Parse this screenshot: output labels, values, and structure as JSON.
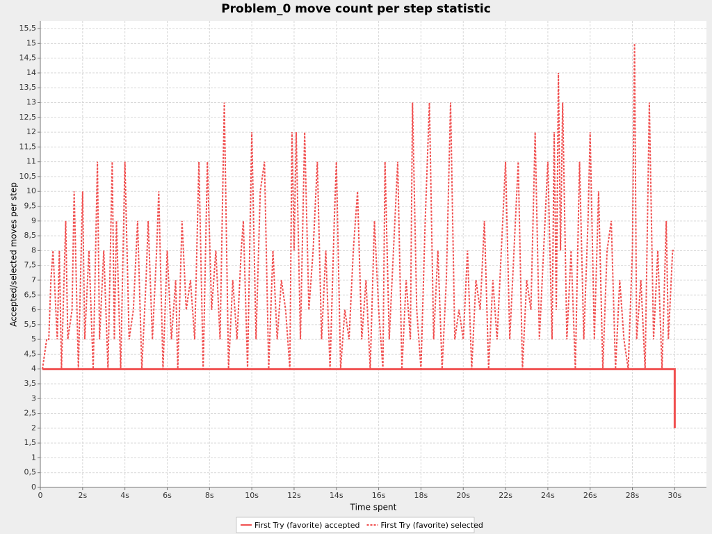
{
  "chart_data": {
    "type": "line",
    "title": "Problem_0 move count per step statistic",
    "x_label": "Time spent",
    "y_label": "Accepted/selected moves per step",
    "xlim": [
      0,
      31.5
    ],
    "ylim": [
      0,
      15.76
    ],
    "grid": true,
    "legend": "bottom",
    "xticks": [
      0,
      {
        "value": 2,
        "label": "2s"
      },
      {
        "value": 4,
        "label": "4s"
      },
      {
        "value": 6,
        "label": "6s"
      },
      {
        "value": 8,
        "label": "8s"
      },
      {
        "value": 10,
        "label": "10s"
      },
      {
        "value": 12,
        "label": "12s"
      },
      {
        "value": 14,
        "label": "14s"
      },
      {
        "value": 16,
        "label": "16s"
      },
      {
        "value": 18,
        "label": "18s"
      },
      {
        "value": 20,
        "label": "20s"
      },
      {
        "value": 22,
        "label": "22s"
      },
      {
        "value": 24,
        "label": "24s"
      },
      {
        "value": 26,
        "label": "26s"
      },
      {
        "value": 28,
        "label": "28s"
      },
      {
        "value": 30,
        "label": "30s"
      }
    ],
    "yticks": [
      0,
      {
        "value": 0.5,
        "label": "0,5"
      },
      1,
      {
        "value": 1.5,
        "label": "1,5"
      },
      2,
      {
        "value": 2.5,
        "label": "2,5"
      },
      3,
      {
        "value": 3.5,
        "label": "3,5"
      },
      4,
      {
        "value": 4.5,
        "label": "4,5"
      },
      5,
      {
        "value": 5.5,
        "label": "5,5"
      },
      6,
      {
        "value": 6.5,
        "label": "6,5"
      },
      7,
      {
        "value": 7.5,
        "label": "7,5"
      },
      8,
      {
        "value": 8.5,
        "label": "8,5"
      },
      9,
      {
        "value": 9.5,
        "label": "9,5"
      },
      10,
      {
        "value": 10.5,
        "label": "10,5"
      },
      11,
      {
        "value": 11.5,
        "label": "11,5"
      },
      12,
      {
        "value": 12.5,
        "label": "12,5"
      },
      13,
      {
        "value": 13.5,
        "label": "13,5"
      },
      14,
      {
        "value": 14.5,
        "label": "14,5"
      },
      15,
      {
        "value": 15.5,
        "label": "15,5"
      }
    ],
    "series": [
      {
        "name": "First Try (favorite) accepted",
        "color": "#f05050",
        "line_style": "solid",
        "x": [
          0.1,
          30,
          30
        ],
        "values": [
          4,
          4,
          2
        ]
      },
      {
        "name": "First Try (favorite) selected",
        "color": "#f05050",
        "line_style": "dashed",
        "x": [
          0.1,
          0.3,
          0.4,
          0.5,
          0.6,
          0.8,
          0.9,
          1.0,
          1.2,
          1.3,
          1.5,
          1.6,
          1.8,
          2.0,
          2.1,
          2.3,
          2.5,
          2.7,
          2.8,
          3.0,
          3.2,
          3.4,
          3.5,
          3.6,
          3.8,
          4.0,
          4.2,
          4.4,
          4.6,
          4.8,
          5.0,
          5.1,
          5.3,
          5.5,
          5.6,
          5.8,
          6.0,
          6.2,
          6.4,
          6.5,
          6.7,
          6.9,
          7.1,
          7.3,
          7.5,
          7.7,
          7.9,
          8.1,
          8.3,
          8.5,
          8.7,
          8.9,
          9.1,
          9.3,
          9.5,
          9.6,
          9.8,
          10.0,
          10.2,
          10.4,
          10.6,
          10.8,
          11.0,
          11.2,
          11.4,
          11.6,
          11.8,
          11.9,
          12.0,
          12.1,
          12.3,
          12.5,
          12.7,
          12.9,
          13.1,
          13.3,
          13.5,
          13.7,
          13.9,
          14.0,
          14.2,
          14.4,
          14.6,
          14.8,
          15.0,
          15.2,
          15.4,
          15.6,
          15.8,
          16.0,
          16.2,
          16.3,
          16.5,
          16.7,
          16.9,
          17.1,
          17.3,
          17.5,
          17.6,
          17.8,
          18.0,
          18.2,
          18.4,
          18.6,
          18.8,
          19.0,
          19.2,
          19.4,
          19.6,
          19.8,
          20.0,
          20.2,
          20.4,
          20.6,
          20.8,
          21.0,
          21.2,
          21.4,
          21.6,
          21.8,
          22.0,
          22.2,
          22.4,
          22.6,
          22.8,
          23.0,
          23.2,
          23.4,
          23.6,
          23.8,
          24.0,
          24.2,
          24.3,
          24.4,
          24.5,
          24.6,
          24.7,
          24.9,
          25.1,
          25.3,
          25.5,
          25.7,
          25.9,
          26.0,
          26.2,
          26.4,
          26.6,
          26.8,
          27.0,
          27.2,
          27.4,
          27.6,
          27.8,
          28.0,
          28.1,
          28.2,
          28.4,
          28.6,
          28.8,
          29.0,
          29.2,
          29.4,
          29.6,
          29.7,
          29.9,
          30.0
        ],
        "values": [
          4,
          5,
          5,
          7,
          8,
          5,
          8,
          4,
          9,
          5,
          6,
          10,
          4,
          10,
          5,
          8,
          4,
          11,
          5,
          8,
          4,
          11,
          5,
          9,
          4,
          11,
          5,
          6,
          9,
          4,
          7,
          9,
          5,
          8,
          10,
          4,
          8,
          5,
          7,
          4,
          9,
          6,
          7,
          5,
          11,
          4,
          11,
          6,
          8,
          5,
          13,
          4,
          7,
          5,
          8,
          9,
          4,
          12,
          5,
          10,
          11,
          4,
          8,
          5,
          7,
          6,
          4,
          12,
          8,
          12,
          5,
          12,
          6,
          8,
          11,
          5,
          8,
          4,
          9,
          11,
          4,
          6,
          5,
          8,
          10,
          5,
          7,
          4,
          9,
          6,
          4,
          11,
          5,
          8,
          11,
          4,
          7,
          5,
          13,
          6,
          4,
          9,
          13,
          5,
          8,
          4,
          7,
          13,
          5,
          6,
          5,
          8,
          4,
          7,
          6,
          9,
          4,
          7,
          5,
          8,
          11,
          5,
          8,
          11,
          4,
          7,
          6,
          12,
          5,
          8,
          11,
          5,
          12,
          6,
          14,
          8,
          13,
          5,
          8,
          4,
          11,
          5,
          9,
          12,
          5,
          10,
          4,
          8,
          9,
          4,
          7,
          5,
          4,
          8,
          15,
          5,
          7,
          4,
          13,
          5,
          8,
          4,
          9,
          5,
          8,
          8
        ]
      }
    ]
  }
}
